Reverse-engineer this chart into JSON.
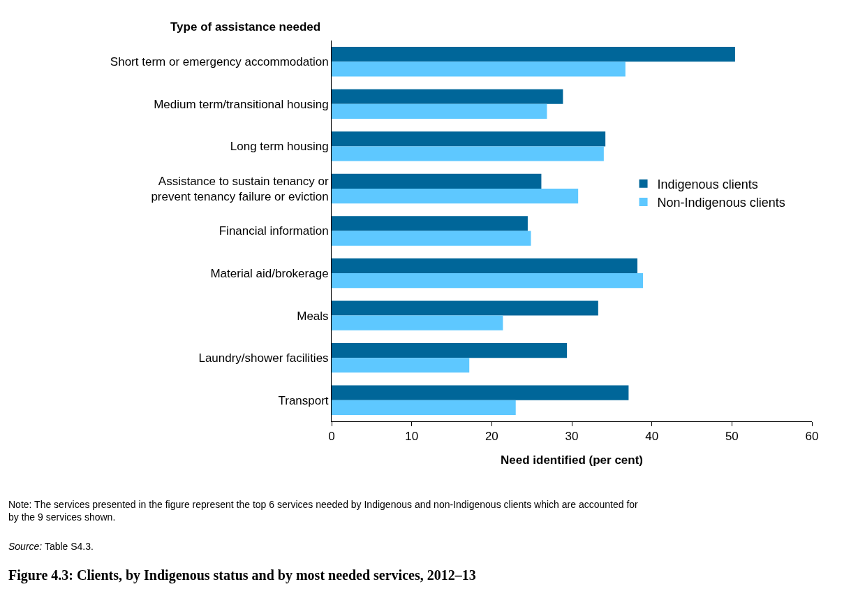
{
  "chart_data": {
    "type": "bar",
    "orientation": "horizontal",
    "title": "Figure 4.3: Clients, by Indigenous status and by most needed services, 2012–13",
    "ylabel": "Type of assistance needed",
    "xlabel": "Need identified (per cent)",
    "categories": [
      "Short term or emergency accommodation",
      "Medium term/transitional housing",
      "Long term housing",
      "Assistance to sustain tenancy or\nprevent tenancy failure or eviction",
      "Financial information",
      "Material aid/brokerage",
      "Meals",
      "Laundry/shower facilities",
      "Transport"
    ],
    "series": [
      {
        "name": "Indigenous clients",
        "color": "#006699",
        "values": [
          50.4,
          28.9,
          34.2,
          26.2,
          24.5,
          38.2,
          33.3,
          29.4,
          37.1
        ]
      },
      {
        "name": "Non-Indigenous clients",
        "color": "#5ec8ff",
        "values": [
          36.7,
          26.9,
          34.0,
          30.8,
          24.9,
          38.9,
          21.4,
          17.2,
          23.0
        ]
      }
    ],
    "xlim": [
      0,
      60
    ],
    "xticks": [
      0,
      10,
      20,
      30,
      40,
      50,
      60
    ],
    "legend": "right",
    "annotations": [
      "Note: The services presented in the figure represent the top 6 services needed by Indigenous and non-Indigenous clients which are accounted for\nby the 9 services shown.",
      "Source: Table S4.3."
    ]
  }
}
